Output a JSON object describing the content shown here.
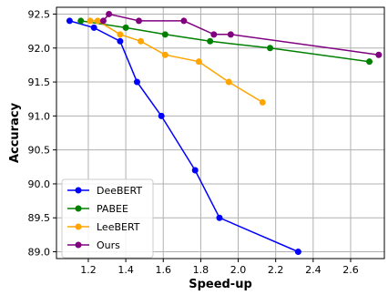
{
  "chart_data": {
    "type": "line",
    "title": "",
    "xlabel": "Speed-up",
    "ylabel": "Accuracy",
    "xlim": [
      1.03,
      2.78
    ],
    "ylim": [
      88.9,
      92.6
    ],
    "xticks": [
      "1.2",
      "1.4",
      "1.6",
      "1.8",
      "2.0",
      "2.2",
      "2.4",
      "2.6"
    ],
    "yticks": [
      "89.0",
      "89.5",
      "90.0",
      "90.5",
      "91.0",
      "91.5",
      "92.0",
      "92.5"
    ],
    "grid": true,
    "legend_position": "lower-left",
    "series": [
      {
        "name": "DeeBERT",
        "color": "#0000ff",
        "x": [
          1.1,
          1.23,
          1.37,
          1.46,
          1.59,
          1.77,
          1.9,
          2.32
        ],
        "y": [
          92.4,
          92.3,
          92.1,
          91.5,
          91.0,
          90.2,
          89.5,
          89.0
        ]
      },
      {
        "name": "PABEE",
        "color": "#008000",
        "x": [
          1.16,
          1.4,
          1.61,
          1.85,
          2.17,
          2.7
        ],
        "y": [
          92.4,
          92.3,
          92.2,
          92.1,
          92.0,
          91.8
        ]
      },
      {
        "name": "LeeBERT",
        "color": "#ffa500",
        "x": [
          1.21,
          1.25,
          1.37,
          1.48,
          1.61,
          1.79,
          1.95,
          2.13
        ],
        "y": [
          92.4,
          92.4,
          92.2,
          92.1,
          91.9,
          91.8,
          91.5,
          91.2
        ]
      },
      {
        "name": "Ours",
        "color": "#800080",
        "x": [
          1.28,
          1.31,
          1.47,
          1.71,
          1.87,
          1.96,
          2.75
        ],
        "y": [
          92.4,
          92.5,
          92.4,
          92.4,
          92.2,
          92.2,
          91.9
        ]
      }
    ]
  }
}
